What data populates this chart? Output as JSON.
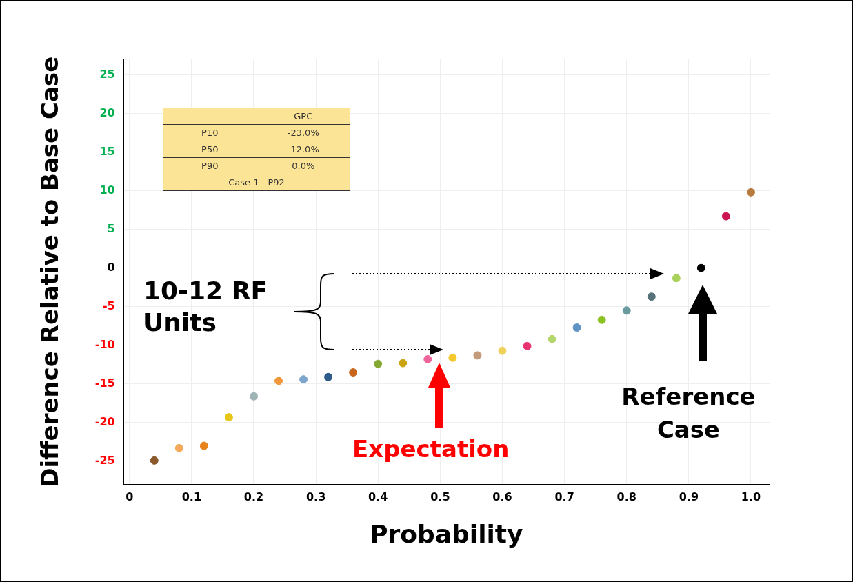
{
  "chart_data": {
    "type": "scatter",
    "xlabel": "Probability",
    "ylabel": "Difference Relative to Base Case",
    "x": [
      0.04,
      0.08,
      0.12,
      0.16,
      0.2,
      0.24,
      0.28,
      0.32,
      0.36,
      0.4,
      0.44,
      0.48,
      0.52,
      0.56,
      0.6,
      0.64,
      0.68,
      0.72,
      0.76,
      0.8,
      0.84,
      0.88,
      0.92,
      0.96,
      1.0
    ],
    "series": [
      {
        "values": [
          -24.9,
          -23.3,
          -23.0,
          -19.3,
          -16.6,
          -14.6,
          -14.4,
          -14.1,
          -13.5,
          -12.4,
          -12.3,
          -11.8,
          -11.6,
          -11.3,
          -10.7,
          -10.1,
          -9.2,
          -7.7,
          -6.7,
          -5.5,
          -3.7,
          -1.3,
          0,
          6.7,
          9.8
        ],
        "colors": [
          "#8b5a2b",
          "#f5a95a",
          "#e8821a",
          "#e6c619",
          "#9fb3b5",
          "#f0973a",
          "#7ea6cc",
          "#2e5a8a",
          "#c9651a",
          "#86a832",
          "#c9a312",
          "#f0649c",
          "#f5c92e",
          "#c49a7a",
          "#f0d25a",
          "#e8336f",
          "#b5d66a",
          "#5f93c4",
          "#8cc224",
          "#6a999e",
          "#557378",
          "#a8d25a",
          "#000000",
          "#cc1452",
          "#b87a3e"
        ]
      }
    ],
    "xlim": [
      -0.01,
      1.03
    ],
    "xticks": [
      0,
      0.1,
      0.2,
      0.3,
      0.4,
      0.5,
      0.6,
      0.7,
      0.8,
      0.9,
      {
        "value": 1,
        "label": "1.0"
      }
    ],
    "ylim": [
      -28,
      27
    ],
    "yticks": [
      -25,
      -20,
      -15,
      -10,
      -5,
      0,
      5,
      10,
      15,
      20,
      25
    ],
    "grid": true,
    "legend": false,
    "marker": "circle",
    "annotations": [
      "GPC",
      "P10",
      "-23.0%",
      "P50",
      "-12.0%",
      "P90",
      "0.0%",
      "Case 1 - P92",
      "10-12 RF Units",
      "Expectation",
      "Reference Case"
    ]
  }
}
